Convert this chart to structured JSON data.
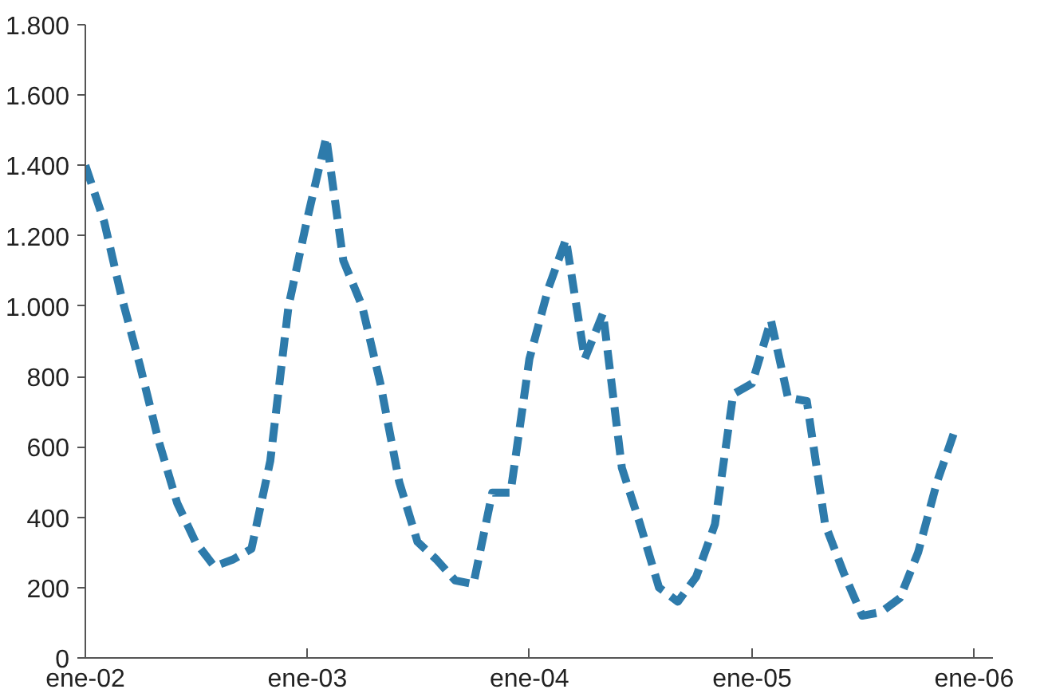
{
  "chart_data": {
    "type": "line",
    "line_style": "dashed",
    "grid": false,
    "marker": "none",
    "x": [
      "2002-01",
      "2002-02",
      "2002-03",
      "2002-04",
      "2002-05",
      "2002-06",
      "2002-07",
      "2002-08",
      "2002-09",
      "2002-10",
      "2002-11",
      "2002-12",
      "2003-01",
      "2003-02",
      "2003-03",
      "2003-04",
      "2003-05",
      "2003-06",
      "2003-07",
      "2003-08",
      "2003-09",
      "2003-10",
      "2003-11",
      "2003-12",
      "2004-01",
      "2004-02",
      "2004-03",
      "2004-04",
      "2004-05",
      "2004-06",
      "2004-07",
      "2004-08",
      "2004-09",
      "2004-10",
      "2004-11",
      "2004-12",
      "2005-01",
      "2005-02",
      "2005-03",
      "2005-04",
      "2005-05",
      "2005-06",
      "2005-07",
      "2005-08",
      "2005-09",
      "2005-10",
      "2005-11",
      "2005-12"
    ],
    "series": [
      {
        "color": "#2e7bab",
        "values": [
          1400,
          1240,
          1030,
          830,
          620,
          440,
          330,
          260,
          280,
          310,
          560,
          1000,
          1250,
          1480,
          1130,
          1000,
          780,
          500,
          330,
          280,
          220,
          210,
          470,
          470,
          850,
          1050,
          1190,
          850,
          980,
          540,
          380,
          200,
          160,
          230,
          380,
          750,
          780,
          960,
          740,
          730,
          380,
          240,
          120,
          130,
          170,
          300,
          500,
          650
        ]
      }
    ],
    "xlim": [
      "2002-01",
      "2006-02"
    ],
    "xticks": [
      {
        "value": "2002-01",
        "label": "ene-02"
      },
      {
        "value": "2003-01",
        "label": "ene-03"
      },
      {
        "value": "2004-01",
        "label": "ene-04"
      },
      {
        "value": "2005-01",
        "label": "ene-05"
      },
      {
        "value": "2006-01",
        "label": "ene-06"
      }
    ],
    "ylim": [
      0,
      1800
    ],
    "yticks": [
      0,
      200,
      400,
      600,
      800,
      {
        "value": 1000,
        "label": "1.000"
      },
      {
        "value": 1200,
        "label": "1.200"
      },
      {
        "value": 1400,
        "label": "1.400"
      },
      {
        "value": 1600,
        "label": "1.600"
      },
      {
        "value": 1800,
        "label": "1.800"
      }
    ]
  }
}
